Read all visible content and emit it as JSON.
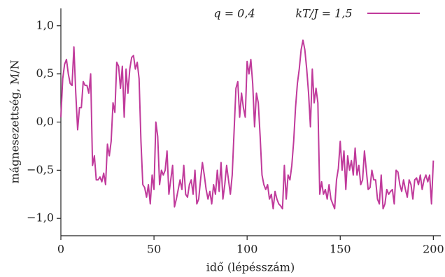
{
  "chart_data": {
    "type": "line",
    "annotation": "q = 0,4",
    "xlabel": "idő (lépésszám)",
    "ylabel": "mágnesezettség, M/N",
    "x": [
      0,
      1,
      2,
      3,
      4,
      5,
      6,
      7,
      8,
      9,
      10,
      11,
      12,
      13,
      14,
      15,
      16,
      17,
      18,
      19,
      20,
      21,
      22,
      23,
      24,
      25,
      26,
      27,
      28,
      29,
      30,
      31,
      32,
      33,
      34,
      35,
      36,
      37,
      38,
      39,
      40,
      41,
      42,
      43,
      44,
      45,
      46,
      47,
      48,
      49,
      50,
      51,
      52,
      53,
      54,
      55,
      56,
      57,
      58,
      59,
      60,
      61,
      62,
      63,
      64,
      65,
      66,
      67,
      68,
      69,
      70,
      71,
      72,
      73,
      74,
      75,
      76,
      77,
      78,
      79,
      80,
      81,
      82,
      83,
      84,
      85,
      86,
      87,
      88,
      89,
      90,
      91,
      92,
      93,
      94,
      95,
      96,
      97,
      98,
      99,
      100,
      101,
      102,
      103,
      104,
      105,
      106,
      107,
      108,
      109,
      110,
      111,
      112,
      113,
      114,
      115,
      116,
      117,
      118,
      119,
      120,
      121,
      122,
      123,
      124,
      125,
      126,
      127,
      128,
      129,
      130,
      131,
      132,
      133,
      134,
      135,
      136,
      137,
      138,
      139,
      140,
      141,
      142,
      143,
      144,
      145,
      146,
      147,
      148,
      149,
      150,
      151,
      152,
      153,
      154,
      155,
      156,
      157,
      158,
      159,
      160,
      161,
      162,
      163,
      164,
      165,
      166,
      167,
      168,
      169,
      170,
      171,
      172,
      173,
      174,
      175,
      176,
      177,
      178,
      179,
      180,
      181,
      182,
      183,
      184,
      185,
      186,
      187,
      188,
      189,
      190,
      191,
      192,
      193,
      194,
      195,
      196,
      197,
      198,
      199,
      200
    ],
    "series": [
      {
        "name": "kT/J = 1,5",
        "color": "#c03a9b",
        "values": [
          0.05,
          0.45,
          0.6,
          0.65,
          0.5,
          0.4,
          0.38,
          0.78,
          0.3,
          -0.08,
          0.15,
          0.15,
          0.42,
          0.38,
          0.38,
          0.3,
          0.5,
          -0.45,
          -0.35,
          -0.6,
          -0.6,
          -0.57,
          -0.62,
          -0.53,
          -0.65,
          -0.23,
          -0.35,
          -0.2,
          0.2,
          0.1,
          0.62,
          0.58,
          0.35,
          0.58,
          0.05,
          0.55,
          0.3,
          0.55,
          0.67,
          0.69,
          0.55,
          0.62,
          0.45,
          -0.2,
          -0.65,
          -0.68,
          -0.78,
          -0.65,
          -0.85,
          -0.55,
          -0.7,
          0.0,
          -0.15,
          -0.65,
          -0.5,
          -0.55,
          -0.5,
          -0.3,
          -0.75,
          -0.6,
          -0.45,
          -0.88,
          -0.8,
          -0.7,
          -0.6,
          -0.7,
          -0.45,
          -0.75,
          -0.78,
          -0.65,
          -0.6,
          -0.75,
          -0.5,
          -0.85,
          -0.8,
          -0.6,
          -0.42,
          -0.55,
          -0.7,
          -0.8,
          -0.72,
          -0.85,
          -0.65,
          -0.75,
          -0.5,
          -0.72,
          -0.42,
          -0.8,
          -0.65,
          -0.45,
          -0.6,
          -0.75,
          -0.55,
          -0.1,
          0.35,
          0.42,
          0.05,
          0.3,
          0.15,
          0.05,
          0.63,
          0.5,
          0.65,
          0.4,
          -0.05,
          0.3,
          0.2,
          -0.15,
          -0.55,
          -0.65,
          -0.7,
          -0.65,
          -0.8,
          -0.75,
          -0.9,
          -0.72,
          -0.8,
          -0.85,
          -0.87,
          -0.9,
          -0.45,
          -0.8,
          -0.55,
          -0.6,
          -0.45,
          -0.2,
          0.15,
          0.4,
          0.55,
          0.75,
          0.85,
          0.75,
          0.55,
          0.3,
          -0.05,
          0.55,
          0.2,
          0.35,
          0.2,
          -0.75,
          -0.62,
          -0.75,
          -0.7,
          -0.8,
          -0.65,
          -0.8,
          -0.85,
          -0.9,
          -0.6,
          -0.48,
          -0.2,
          -0.5,
          -0.3,
          -0.7,
          -0.35,
          -0.5,
          -0.4,
          -0.55,
          -0.27,
          -0.55,
          -0.45,
          -0.65,
          -0.6,
          -0.3,
          -0.5,
          -0.7,
          -0.68,
          -0.5,
          -0.6,
          -0.6,
          -0.8,
          -0.85,
          -0.55,
          -0.9,
          -0.85,
          -0.7,
          -0.75,
          -0.72,
          -0.7,
          -0.85,
          -0.5,
          -0.52,
          -0.65,
          -0.72,
          -0.6,
          -0.7,
          -0.78,
          -0.6,
          -0.65,
          -0.8,
          -0.6,
          -0.58,
          -0.65,
          -0.55,
          -0.7,
          -0.6,
          -0.55,
          -0.62,
          -0.55,
          -0.85,
          -0.4
        ]
      }
    ],
    "xlim": [
      0,
      204
    ],
    "xticks": [
      0,
      50,
      100,
      150,
      200
    ],
    "ylim": [
      -1.18,
      1.18
    ],
    "yticks": [
      {
        "value": -1.0,
        "label": "−1,0"
      },
      {
        "value": -0.5,
        "label": "−0,5"
      },
      {
        "value": 0.0,
        "label": "0,0"
      },
      {
        "value": 0.5,
        "label": "0,5"
      },
      {
        "value": 1.0,
        "label": "1,0"
      }
    ],
    "grid": false
  }
}
